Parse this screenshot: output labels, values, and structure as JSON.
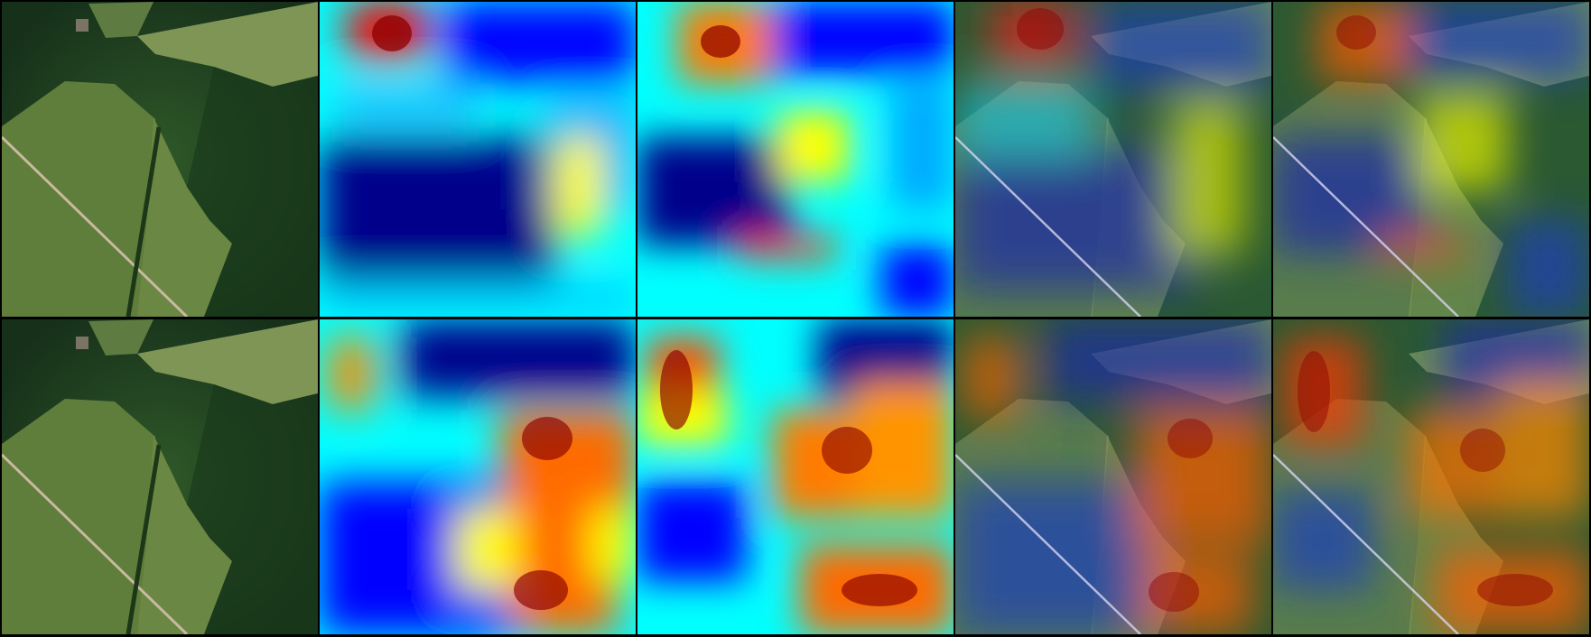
{
  "grid": {
    "rows": 2,
    "columns": 5,
    "background": "#000000"
  },
  "palette": {
    "heatmap_low": "#00008b",
    "heatmap_mid": "#00ffff",
    "heatmap_high_mid": "#ffff00",
    "heatmap_high": "#ff0000",
    "heatmap_peak": "#7a0000",
    "forest": "#1f3a1b",
    "field": "#5f7d3b",
    "field_light": "#7f9556",
    "road": "#c8b9a0"
  },
  "panels": [
    [
      {
        "kind": "satellite",
        "name": "row1-satellite"
      },
      {
        "kind": "heatmap",
        "name": "row1-heatmap-a"
      },
      {
        "kind": "heatmap",
        "name": "row1-heatmap-b"
      },
      {
        "kind": "overlay",
        "name": "row1-overlay-a"
      },
      {
        "kind": "overlay",
        "name": "row1-overlay-b"
      }
    ],
    [
      {
        "kind": "satellite",
        "name": "row2-satellite"
      },
      {
        "kind": "heatmap",
        "name": "row2-heatmap-a"
      },
      {
        "kind": "heatmap",
        "name": "row2-heatmap-b"
      },
      {
        "kind": "overlay",
        "name": "row2-overlay-a"
      },
      {
        "kind": "overlay",
        "name": "row2-overlay-b"
      }
    ]
  ]
}
